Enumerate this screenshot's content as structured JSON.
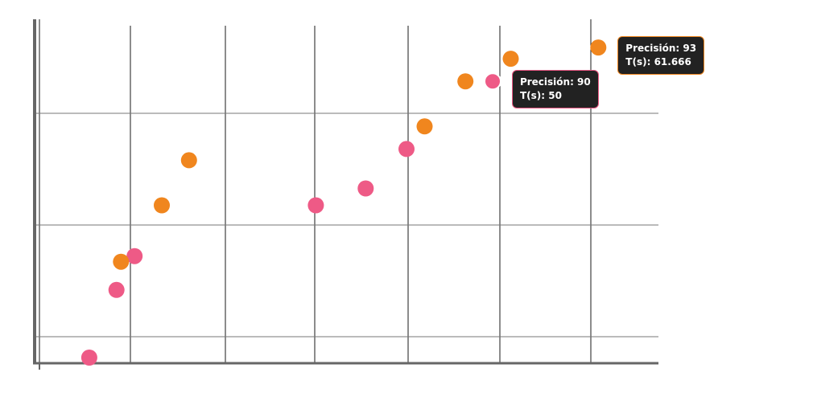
{
  "chart_data": {
    "type": "scatter",
    "xlim": [
      0,
      68.3
    ],
    "ylim": [
      65,
      95.5
    ],
    "grid": true,
    "series": [
      {
        "color": "#EE5A86",
        "points": [
          {
            "x": 5.5,
            "y": 65.5
          },
          {
            "x": 8.5,
            "y": 71.5
          },
          {
            "x": 10.5,
            "y": 74.5
          },
          {
            "x": 30.5,
            "y": 79
          },
          {
            "x": 36,
            "y": 80.5
          },
          {
            "x": 40.5,
            "y": 84
          },
          {
            "x": 50,
            "y": 90
          }
        ]
      },
      {
        "color": "#F0861E",
        "points": [
          {
            "x": 9,
            "y": 74
          },
          {
            "x": 13.5,
            "y": 79
          },
          {
            "x": 16.5,
            "y": 83
          },
          {
            "x": 42.5,
            "y": 86
          },
          {
            "x": 47,
            "y": 90
          },
          {
            "x": 52,
            "y": 92
          },
          {
            "x": 61.666,
            "y": 93
          }
        ]
      }
    ],
    "tooltips": [
      {
        "series": 0,
        "point": 6,
        "line1": "Precisión: 90",
        "line2": "T(s): 50",
        "border": "#EE5A86"
      },
      {
        "series": 1,
        "point": 6,
        "line1": "Precisión: 93",
        "line2": "T(s): 61.666",
        "border": "#F0861E"
      }
    ]
  }
}
